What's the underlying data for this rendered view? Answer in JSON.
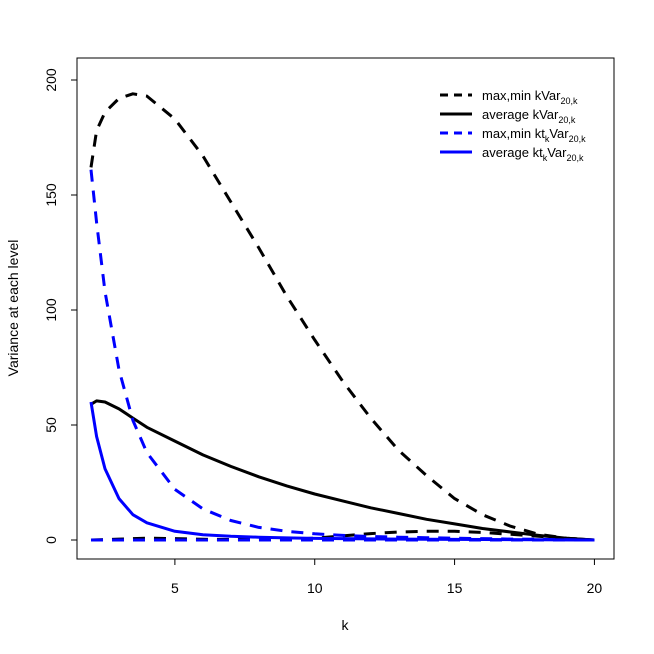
{
  "chart_data": {
    "type": "line",
    "xlabel": "k",
    "ylabel": "Variance at each level",
    "xlim": [
      1.5,
      20.7
    ],
    "ylim": [
      -8,
      200
    ],
    "xticks": [
      5,
      10,
      15,
      20
    ],
    "yticks": [
      0,
      50,
      100,
      150,
      200
    ],
    "grid": false,
    "legend_position": "top-right",
    "legend": [
      {
        "label_main": "max,min kVar",
        "sub": "20,k",
        "color": "#000000",
        "dashed": true
      },
      {
        "label_main": "average kVar",
        "sub": "20,k",
        "color": "#000000",
        "dashed": false
      },
      {
        "label_main": "max,min kt",
        "mid_sub": "k",
        "label_after": "Var",
        "sub": "20,k",
        "color": "#0000ff",
        "dashed": true
      },
      {
        "label_main": "average kt",
        "mid_sub": "k",
        "label_after": "Var",
        "sub": "20,k",
        "color": "#0000ff",
        "dashed": false
      }
    ],
    "series": [
      {
        "color": "#000000",
        "dashed": true,
        "x": [
          2,
          2.2,
          2.5,
          3,
          3.5,
          4,
          5,
          6,
          7,
          8,
          9,
          10,
          11,
          12,
          13,
          14,
          15,
          16,
          17,
          18,
          19,
          20
        ],
        "y": [
          162,
          178,
          186,
          192,
          194,
          193,
          183,
          167,
          147,
          127,
          106,
          87,
          69,
          53,
          39,
          28,
          18,
          11,
          6,
          2.5,
          0.8,
          0
        ]
      },
      {
        "color": "#000000",
        "dashed": true,
        "x": [
          2,
          3,
          4,
          5,
          6,
          7,
          8,
          9,
          10,
          11,
          12,
          13,
          14,
          15,
          16,
          17,
          18,
          19,
          20
        ],
        "y": [
          0,
          0.4,
          0.8,
          0.6,
          0.3,
          0.2,
          0.2,
          0.3,
          0.8,
          1.8,
          2.8,
          3.5,
          3.8,
          3.8,
          3.3,
          2.5,
          1.6,
          0.7,
          0
        ]
      },
      {
        "color": "#000000",
        "dashed": false,
        "x": [
          2,
          2.2,
          2.5,
          3,
          3.5,
          4,
          5,
          6,
          7,
          8,
          9,
          10,
          11,
          12,
          13,
          14,
          15,
          16,
          17,
          18,
          19,
          20
        ],
        "y": [
          59,
          60.5,
          60,
          57,
          53,
          49,
          43,
          37,
          32,
          27.5,
          23.5,
          20,
          17,
          14,
          11.5,
          9,
          7,
          5,
          3.5,
          2,
          0.8,
          0
        ]
      },
      {
        "color": "#0000ff",
        "dashed": true,
        "x": [
          2,
          2.2,
          2.5,
          3,
          3.5,
          4,
          5,
          6,
          7,
          8,
          9,
          10,
          11,
          12,
          13,
          14,
          15,
          16,
          17,
          18,
          19,
          20
        ],
        "y": [
          161,
          138,
          108,
          74,
          52,
          38,
          22,
          13.5,
          8.5,
          5.5,
          3.8,
          2.7,
          2,
          1.5,
          1.2,
          1,
          0.8,
          0.6,
          0.4,
          0.3,
          0.1,
          0
        ]
      },
      {
        "color": "#0000ff",
        "dashed": true,
        "x": [
          2,
          3,
          5,
          8,
          12,
          16,
          20
        ],
        "y": [
          0,
          0,
          0,
          0,
          0,
          0,
          0
        ]
      },
      {
        "color": "#0000ff",
        "dashed": false,
        "x": [
          2,
          2.2,
          2.5,
          3,
          3.5,
          4,
          5,
          6,
          7,
          8,
          9,
          10,
          12,
          14,
          16,
          18,
          20
        ],
        "y": [
          60,
          45,
          31,
          18,
          11,
          7.5,
          3.8,
          2.3,
          1.6,
          1.2,
          0.9,
          0.7,
          0.5,
          0.3,
          0.2,
          0.1,
          0
        ]
      }
    ]
  }
}
